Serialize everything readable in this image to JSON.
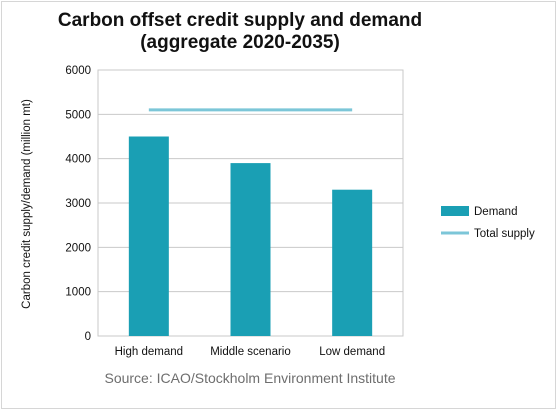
{
  "chart_data": {
    "type": "bar",
    "title": "Carbon offset credit supply and demand\n(aggregate 2020-2035)",
    "title_lines": [
      "Carbon offset credit supply and demand",
      "(aggregate 2020-2035)"
    ],
    "ylabel": "Carbon credit supply/demand  (million mt)",
    "xlabel": "",
    "categories": [
      "High demand",
      "Middle scenario",
      "Low demand"
    ],
    "series": [
      {
        "name": "Demand",
        "type": "bar",
        "values": [
          4500,
          3900,
          3300
        ],
        "color": "#1a9fb4"
      },
      {
        "name": "Total supply",
        "type": "line",
        "values": [
          5100,
          5100,
          5100
        ],
        "color": "#7cc6d8"
      }
    ],
    "ylim": [
      0,
      6000
    ],
    "yticks": [
      0,
      1000,
      2000,
      3000,
      4000,
      5000,
      6000
    ],
    "grid": true,
    "legend_position": "right",
    "source": "Source: ICAO/Stockholm Environment Institute"
  }
}
